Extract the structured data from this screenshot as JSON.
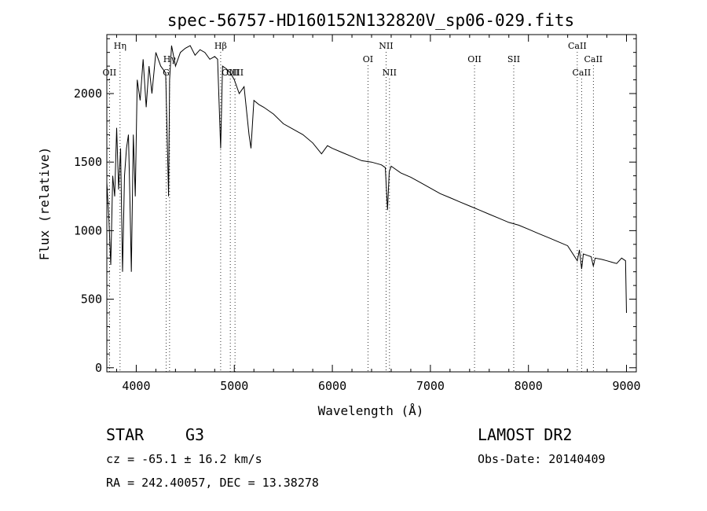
{
  "chart_data": {
    "type": "line",
    "title": "spec-56757-HD160152N132820V_sp06-029.fits",
    "xlabel": "Wavelength (Å)",
    "ylabel": "Flux (relative)",
    "xlim": [
      3700,
      9100
    ],
    "ylim": [
      -30,
      2430
    ],
    "xticks": [
      4000,
      5000,
      6000,
      7000,
      8000,
      9000
    ],
    "yticks": [
      0,
      500,
      1000,
      1500,
      2000
    ],
    "grid": false,
    "series": [
      {
        "name": "flux",
        "x": [
          3700,
          3720,
          3740,
          3760,
          3780,
          3800,
          3820,
          3840,
          3860,
          3880,
          3900,
          3920,
          3935,
          3950,
          3970,
          3990,
          4010,
          4040,
          4070,
          4101,
          4130,
          4160,
          4200,
          4250,
          4300,
          4330,
          4340,
          4360,
          4400,
          4450,
          4500,
          4550,
          4600,
          4650,
          4700,
          4750,
          4800,
          4830,
          4861,
          4880,
          4920,
          4960,
          5000,
          5050,
          5100,
          5150,
          5170,
          5200,
          5250,
          5300,
          5400,
          5500,
          5600,
          5700,
          5800,
          5890,
          5950,
          6000,
          6100,
          6200,
          6300,
          6400,
          6500,
          6540,
          6563,
          6580,
          6600,
          6700,
          6800,
          6900,
          7000,
          7100,
          7200,
          7300,
          7400,
          7500,
          7600,
          7700,
          7800,
          7900,
          8000,
          8100,
          8200,
          8300,
          8400,
          8498,
          8520,
          8542,
          8560,
          8600,
          8640,
          8662,
          8680,
          8750,
          8800,
          8850,
          8900,
          8950,
          8990,
          9000
        ],
        "values": [
          1350,
          1100,
          750,
          1400,
          1250,
          1750,
          1300,
          1600,
          700,
          1400,
          1600,
          1700,
          1250,
          700,
          1700,
          1250,
          2100,
          1950,
          2250,
          1900,
          2200,
          2000,
          2300,
          2200,
          2150,
          1250,
          2100,
          2350,
          2200,
          2300,
          2330,
          2350,
          2280,
          2320,
          2300,
          2250,
          2270,
          2250,
          1600,
          2200,
          2180,
          2150,
          2100,
          2000,
          2050,
          1700,
          1600,
          1950,
          1920,
          1900,
          1850,
          1780,
          1740,
          1700,
          1640,
          1560,
          1620,
          1600,
          1570,
          1540,
          1510,
          1500,
          1480,
          1460,
          1150,
          1430,
          1470,
          1420,
          1390,
          1350,
          1310,
          1270,
          1240,
          1210,
          1180,
          1150,
          1120,
          1090,
          1060,
          1040,
          1010,
          980,
          950,
          920,
          890,
          780,
          860,
          720,
          830,
          820,
          810,
          740,
          800,
          790,
          780,
          770,
          760,
          800,
          780,
          400
        ]
      }
    ],
    "line_markers": [
      {
        "label": "Hη",
        "wavelength": 3835,
        "row": 0
      },
      {
        "label": "OII",
        "wavelength": 3727,
        "row": 2
      },
      {
        "label": "Hγ",
        "wavelength": 4340,
        "row": 1
      },
      {
        "label": "G",
        "wavelength": 4305,
        "row": 2
      },
      {
        "label": "Hβ",
        "wavelength": 4861,
        "row": 0
      },
      {
        "label": "OIII",
        "wavelength": 4959,
        "row": 2
      },
      {
        "label": "OIII",
        "wavelength": 5007,
        "row": 2
      },
      {
        "label": "OI",
        "wavelength": 6363,
        "row": 1
      },
      {
        "label": "NII",
        "wavelength": 6548,
        "row": 0
      },
      {
        "label": "NII",
        "wavelength": 6583,
        "row": 2
      },
      {
        "label": "OII",
        "wavelength": 7450,
        "row": 1
      },
      {
        "label": "SII",
        "wavelength": 7850,
        "row": 1
      },
      {
        "label": "CaII",
        "wavelength": 8498,
        "row": 0
      },
      {
        "label": "CaII",
        "wavelength": 8542,
        "row": 2
      },
      {
        "label": "CaII",
        "wavelength": 8662,
        "row": 1
      }
    ]
  },
  "info": {
    "object_class": "STAR",
    "subclass": "G3",
    "survey": "LAMOST DR2",
    "redshift": "cz = -65.1 ± 16.2 km/s",
    "obs_date": "Obs-Date: 20140409",
    "coords": "RA = 242.40057, DEC =  13.38278"
  }
}
